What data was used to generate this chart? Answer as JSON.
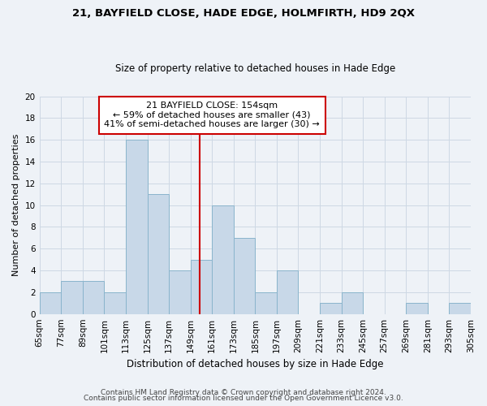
{
  "title": "21, BAYFIELD CLOSE, HADE EDGE, HOLMFIRTH, HD9 2QX",
  "subtitle": "Size of property relative to detached houses in Hade Edge",
  "xlabel": "Distribution of detached houses by size in Hade Edge",
  "ylabel": "Number of detached properties",
  "bin_edges": [
    65,
    77,
    89,
    101,
    113,
    125,
    137,
    149,
    161,
    173,
    185,
    197,
    209,
    221,
    233,
    245,
    257,
    269,
    281,
    293,
    305
  ],
  "bin_labels": [
    "65sqm",
    "77sqm",
    "89sqm",
    "101sqm",
    "113sqm",
    "125sqm",
    "137sqm",
    "149sqm",
    "161sqm",
    "173sqm",
    "185sqm",
    "197sqm",
    "209sqm",
    "221sqm",
    "233sqm",
    "245sqm",
    "257sqm",
    "269sqm",
    "281sqm",
    "293sqm",
    "305sqm"
  ],
  "counts": [
    2,
    3,
    3,
    2,
    16,
    11,
    4,
    5,
    10,
    7,
    2,
    4,
    0,
    1,
    2,
    0,
    0,
    1,
    0,
    1
  ],
  "bar_color": "#c8d8e8",
  "bar_edge_color": "#8ab4cc",
  "vline_x": 154,
  "vline_color": "#cc0000",
  "annotation_text": "21 BAYFIELD CLOSE: 154sqm\n← 59% of detached houses are smaller (43)\n41% of semi-detached houses are larger (30) →",
  "annotation_box_color": "#ffffff",
  "annotation_box_edge_color": "#cc0000",
  "ylim": [
    0,
    20
  ],
  "yticks": [
    0,
    2,
    4,
    6,
    8,
    10,
    12,
    14,
    16,
    18,
    20
  ],
  "footer_line1": "Contains HM Land Registry data © Crown copyright and database right 2024.",
  "footer_line2": "Contains public sector information licensed under the Open Government Licence v3.0.",
  "grid_color": "#cdd8e4",
  "background_color": "#eef2f7",
  "title_fontsize": 9.5,
  "subtitle_fontsize": 8.5,
  "ylabel_fontsize": 8.0,
  "xlabel_fontsize": 8.5,
  "tick_fontsize": 7.5,
  "annotation_fontsize": 8.0,
  "footer_fontsize": 6.5
}
